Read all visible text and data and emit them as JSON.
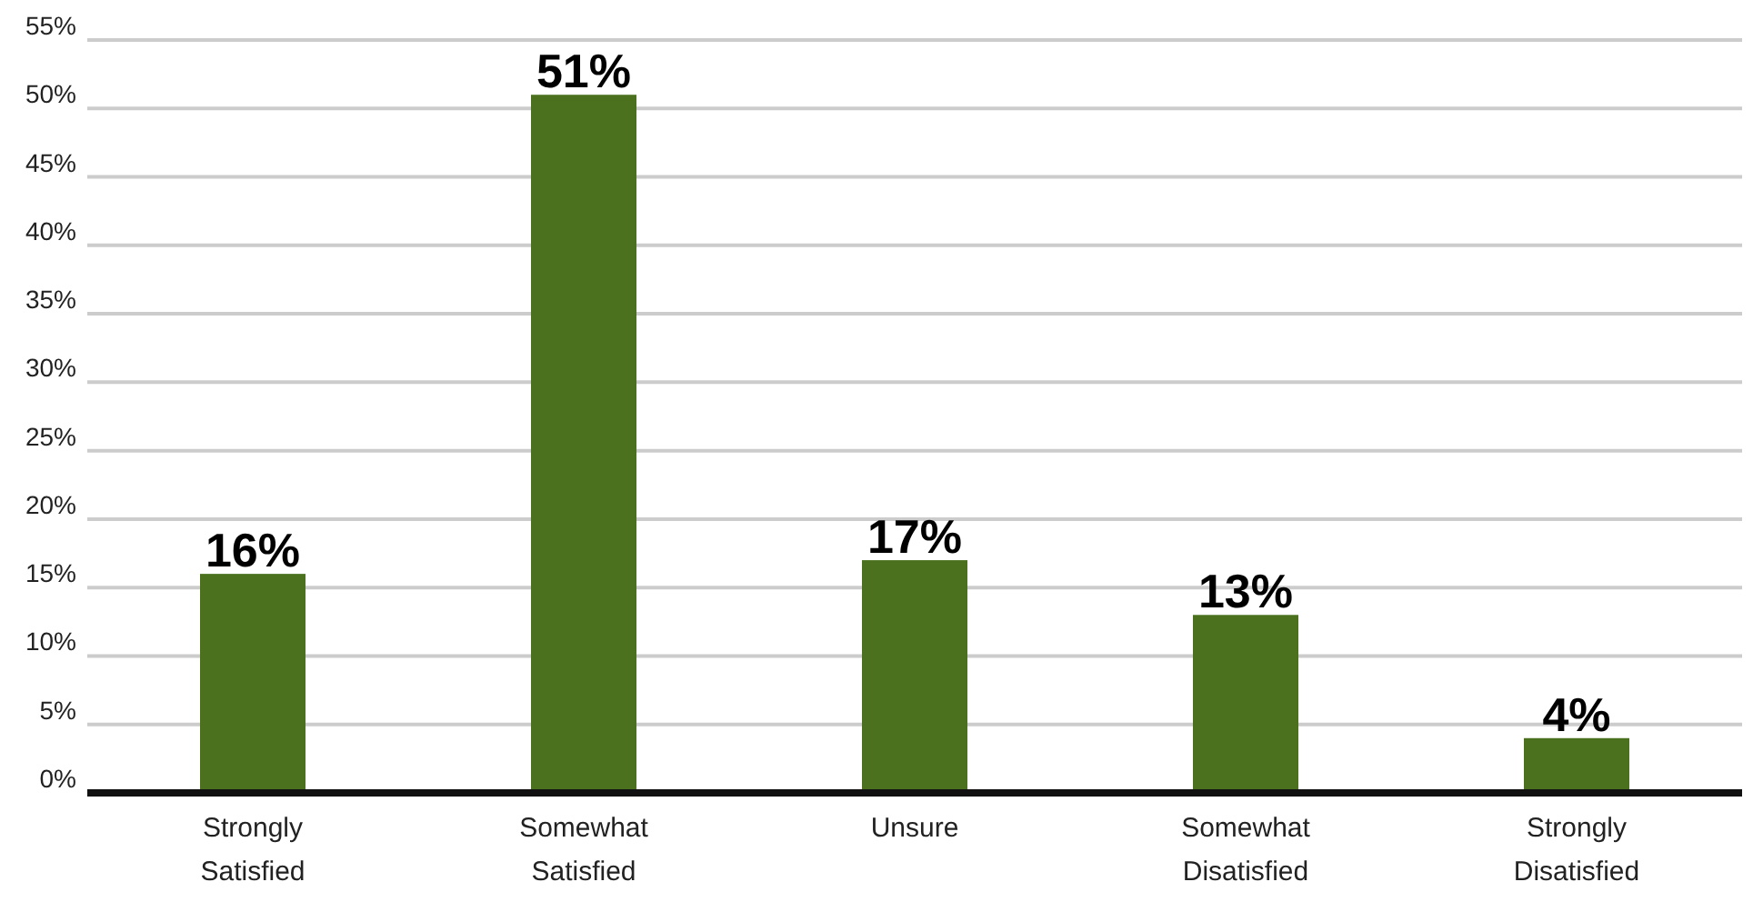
{
  "chart_data": {
    "type": "bar",
    "categories": [
      "Strongly Satisfied",
      "Somewhat Satisfied",
      "Unsure",
      "Somewhat Disatisfied",
      "Strongly Disatisfied"
    ],
    "values": [
      16,
      51,
      17,
      13,
      4
    ],
    "value_labels": [
      "16%",
      "51%",
      "17%",
      "13%",
      "4%"
    ],
    "color": "#4b711e",
    "grid": "y",
    "ylim": [
      0,
      55
    ],
    "yticks": [
      {
        "value": 0,
        "label": "0%"
      },
      {
        "value": 5,
        "label": "5%"
      },
      {
        "value": 10,
        "label": "10%"
      },
      {
        "value": 15,
        "label": "15%"
      },
      {
        "value": 20,
        "label": "20%"
      },
      {
        "value": 25,
        "label": "25%"
      },
      {
        "value": 30,
        "label": "30%"
      },
      {
        "value": 35,
        "label": "35%"
      },
      {
        "value": 40,
        "label": "40%"
      },
      {
        "value": 45,
        "label": "45%"
      },
      {
        "value": 50,
        "label": "50%"
      },
      {
        "value": 55,
        "label": "55%"
      }
    ]
  }
}
